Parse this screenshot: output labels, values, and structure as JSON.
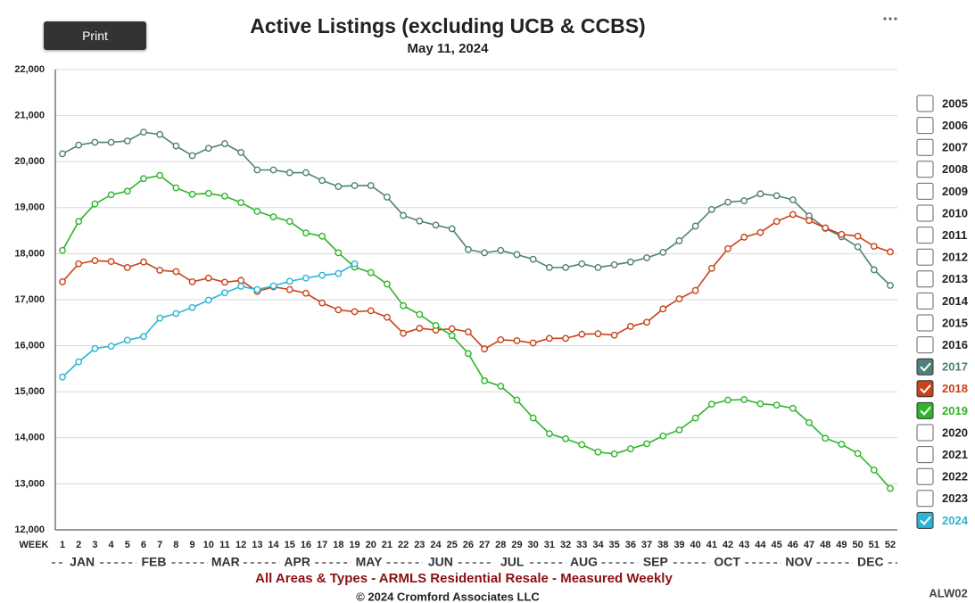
{
  "print_button": "Print",
  "chart_data": {
    "type": "line",
    "title": "Active Listings (excluding UCB & CCBS)",
    "subtitle": "May 11, 2024",
    "x_label": "WEEK",
    "months": [
      "JAN",
      "FEB",
      "MAR",
      "APR",
      "MAY",
      "JUN",
      "JUL",
      "AUG",
      "SEP",
      "OCT",
      "NOV",
      "DEC"
    ],
    "footer": "All Areas & Types - ARMLS Residential Resale - Measured Weekly",
    "copyright": "© 2024 Cromford Associates LLC",
    "code": "ALW02",
    "categories": [
      1,
      2,
      3,
      4,
      5,
      6,
      7,
      8,
      9,
      10,
      11,
      12,
      13,
      14,
      15,
      16,
      17,
      18,
      19,
      20,
      21,
      22,
      23,
      24,
      25,
      26,
      27,
      28,
      29,
      30,
      31,
      32,
      33,
      34,
      35,
      36,
      37,
      38,
      39,
      40,
      41,
      42,
      43,
      44,
      45,
      46,
      47,
      48,
      49,
      50,
      51,
      52
    ],
    "ylim": [
      12000,
      22000
    ],
    "yticks": [
      {
        "value": 12000,
        "label": "12,000"
      },
      {
        "value": 13000,
        "label": "13,000"
      },
      {
        "value": 14000,
        "label": "14,000"
      },
      {
        "value": 15000,
        "label": "15,000"
      },
      {
        "value": 16000,
        "label": "16,000"
      },
      {
        "value": 17000,
        "label": "17,000"
      },
      {
        "value": 18000,
        "label": "18,000"
      },
      {
        "value": 19000,
        "label": "19,000"
      },
      {
        "value": 20000,
        "label": "20,000"
      },
      {
        "value": 21000,
        "label": "21,000"
      },
      {
        "value": 22000,
        "label": "22,000"
      }
    ],
    "grid": true,
    "series": [
      {
        "name": "2017",
        "color": "#4f807b",
        "values": [
          20170,
          20360,
          20420,
          20420,
          20450,
          20640,
          20590,
          20340,
          20130,
          20290,
          20390,
          20200,
          19820,
          19820,
          19760,
          19760,
          19590,
          19460,
          19480,
          19480,
          19230,
          18830,
          18710,
          18620,
          18540,
          18090,
          18020,
          18070,
          17980,
          17880,
          17700,
          17700,
          17780,
          17700,
          17760,
          17820,
          17910,
          18030,
          18280,
          18600,
          18960,
          19120,
          19150,
          19300,
          19260,
          19170,
          18820,
          18550,
          18370,
          18150,
          17650,
          17310
        ]
      },
      {
        "name": "2018",
        "color": "#c8421a",
        "values": [
          17390,
          17780,
          17850,
          17830,
          17700,
          17820,
          17640,
          17610,
          17390,
          17470,
          17380,
          17420,
          17180,
          17280,
          17220,
          17140,
          16930,
          16780,
          16740,
          16760,
          16620,
          16270,
          16380,
          16340,
          16370,
          16300,
          15930,
          16130,
          16110,
          16060,
          16160,
          16160,
          16250,
          16260,
          16230,
          16420,
          16510,
          16800,
          17020,
          17200,
          17680,
          18110,
          18360,
          18460,
          18700,
          18850,
          18720,
          18560,
          18420,
          18380,
          18160,
          18040
        ]
      },
      {
        "name": "2019",
        "color": "#2fb52a",
        "values": [
          18070,
          18700,
          19080,
          19280,
          19360,
          19630,
          19700,
          19430,
          19290,
          19310,
          19250,
          19110,
          18920,
          18800,
          18700,
          18450,
          18380,
          18020,
          17710,
          17590,
          17340,
          16870,
          16680,
          16440,
          16220,
          15830,
          15240,
          15120,
          14820,
          14430,
          14090,
          13980,
          13850,
          13690,
          13650,
          13760,
          13870,
          14040,
          14170,
          14430,
          14730,
          14820,
          14830,
          14740,
          14710,
          14640,
          14330,
          13990,
          13860,
          13660,
          13300,
          12900
        ]
      },
      {
        "name": "2024",
        "color": "#2bb5d3",
        "values": [
          15320,
          15650,
          15940,
          15990,
          16120,
          16200,
          16600,
          16700,
          16830,
          16990,
          17150,
          17290,
          17220,
          17300,
          17400,
          17470,
          17530,
          17570,
          17780,
          null,
          null,
          null,
          null,
          null,
          null,
          null,
          null,
          null,
          null,
          null,
          null,
          null,
          null,
          null,
          null,
          null,
          null,
          null,
          null,
          null,
          null,
          null,
          null,
          null,
          null,
          null,
          null,
          null,
          null,
          null,
          null,
          null
        ]
      }
    ],
    "legend": [
      {
        "label": "2005"
      },
      {
        "label": "2006"
      },
      {
        "label": "2007"
      },
      {
        "label": "2008"
      },
      {
        "label": "2009"
      },
      {
        "label": "2010"
      },
      {
        "label": "2011"
      },
      {
        "label": "2012"
      },
      {
        "label": "2013"
      },
      {
        "label": "2014"
      },
      {
        "label": "2015"
      },
      {
        "label": "2016"
      },
      {
        "series": 0
      },
      {
        "series": 1
      },
      {
        "series": 2
      },
      {
        "label": "2020"
      },
      {
        "label": "2021"
      },
      {
        "label": "2022"
      },
      {
        "label": "2023"
      },
      {
        "series": 3
      }
    ]
  }
}
